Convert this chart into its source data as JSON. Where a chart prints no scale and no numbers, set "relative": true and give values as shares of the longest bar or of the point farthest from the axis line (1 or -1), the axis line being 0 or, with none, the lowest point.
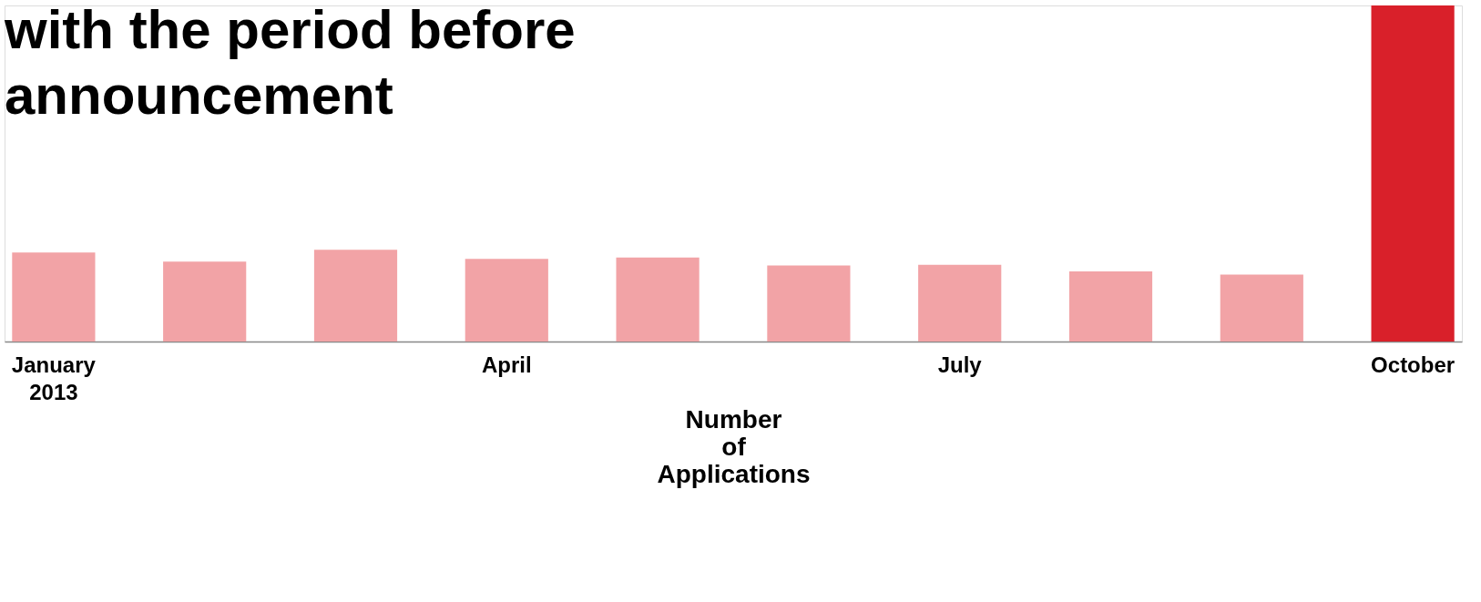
{
  "chart_data": {
    "type": "bar",
    "title": "with the period before\nannouncement",
    "xlabel": "Number of Applications",
    "categories": [
      "January 2013",
      null,
      null,
      "April",
      null,
      null,
      "July",
      null,
      null,
      "October"
    ],
    "values": [
      0.265,
      0.238,
      0.273,
      0.246,
      0.25,
      0.226,
      0.228,
      0.209,
      0.199,
      1
    ],
    "colors": [
      "#f2a3a6",
      "#f2a3a6",
      "#f2a3a6",
      "#f2a3a6",
      "#f2a3a6",
      "#f2a3a6",
      "#f2a3a6",
      "#f2a3a6",
      "#f2a3a6",
      "#d9202a"
    ],
    "relative": true
  }
}
